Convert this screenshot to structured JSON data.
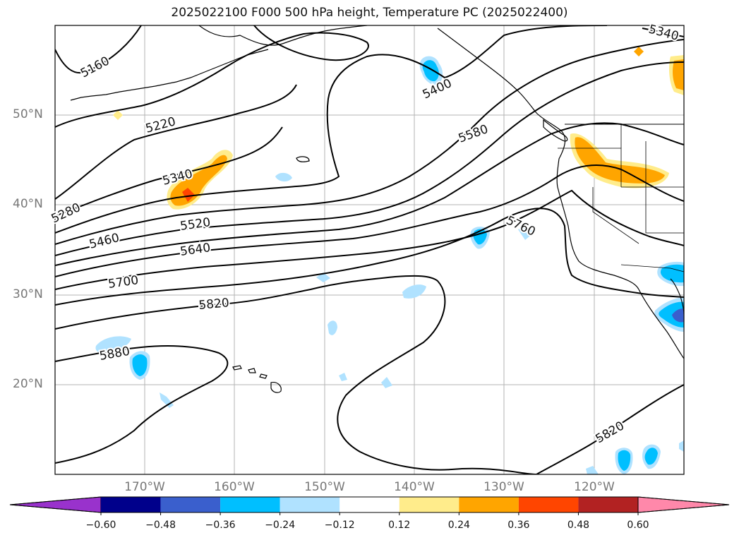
{
  "title": "2025022100 F000 500 hPa height, Temperature PC (2025022400)",
  "lat_labels": [
    "50°N",
    "40°N",
    "30°N",
    "20°N"
  ],
  "lon_labels": [
    "170°W",
    "160°W",
    "150°W",
    "140°W",
    "130°W",
    "120°W"
  ],
  "contour_labels": [
    "5160",
    "5220",
    "5280",
    "5340",
    "5340",
    "5400",
    "5460",
    "5520",
    "5580",
    "5640",
    "5700",
    "5760",
    "5820",
    "5820",
    "5880"
  ],
  "colorbar": {
    "ticks": [
      "−0.60",
      "−0.48",
      "−0.36",
      "−0.24",
      "−0.12",
      "0.12",
      "0.24",
      "0.36",
      "0.48",
      "0.60"
    ],
    "colors": [
      "#9932cc",
      "#00008b",
      "#3a5fcd",
      "#00bfff",
      "#b0e2ff",
      "#ffffff",
      "#ffec8b",
      "#ffa500",
      "#ff4500",
      "#b22222",
      "#ff88aa"
    ]
  }
}
